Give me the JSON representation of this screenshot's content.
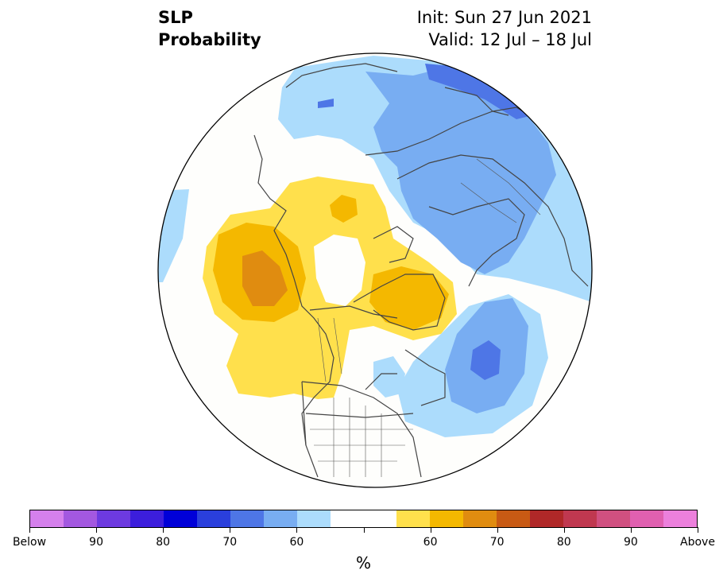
{
  "title": {
    "left_line1": "SLP",
    "left_line2": "Probability",
    "right_line1": "Init: Sun 27 Jun 2021",
    "right_line2": "Valid: 12 Jul – 18 Jul"
  },
  "colorbar": {
    "colors": [
      "#d580ec",
      "#a358e0",
      "#6d3ae0",
      "#3c1edc",
      "#0000d8",
      "#2a3fdc",
      "#4e76e6",
      "#78adf2",
      "#acdcfc",
      "#ffffff",
      "#ffffff",
      "#ffe04c",
      "#f4b800",
      "#e08c10",
      "#c85a14",
      "#b02828",
      "#c03850",
      "#d05080",
      "#e060b0",
      "#ec80dc"
    ],
    "labels": [
      "Below",
      "90",
      "80",
      "70",
      "60",
      "60",
      "70",
      "80",
      "90",
      "Above"
    ],
    "unit": "%"
  },
  "map_legend": {
    "below_normal_color": "#78adf2",
    "above_normal_color": "#f4b800",
    "coastline_color": "#444444"
  }
}
